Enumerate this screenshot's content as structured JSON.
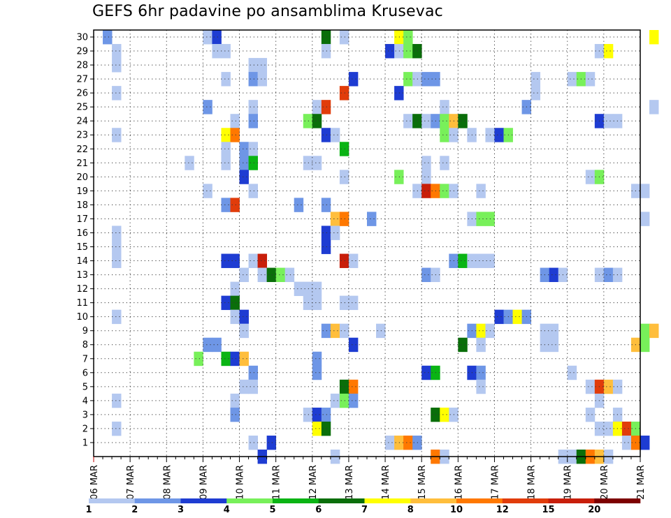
{
  "title": "GEFS 6hr padavine po ansamblima Krusevac",
  "chart_data": {
    "type": "heatmap",
    "title": "GEFS 6hr padavine po ansamblima Krusevac",
    "x_dates": [
      "06 MAR",
      "07 MAR",
      "08 MAR",
      "09 MAR",
      "10 MAR",
      "11 MAR",
      "12 MAR",
      "13 MAR",
      "14 MAR",
      "15 MAR",
      "16 MAR",
      "17 MAR",
      "18 MAR",
      "19 MAR",
      "20 MAR",
      "21 MAR"
    ],
    "x_step": "6h",
    "ylim": [
      0,
      30
    ],
    "y_ticks": [
      1,
      2,
      3,
      4,
      5,
      6,
      7,
      8,
      9,
      10,
      11,
      12,
      13,
      14,
      15,
      16,
      17,
      18,
      19,
      20,
      21,
      22,
      23,
      24,
      25,
      26,
      27,
      28,
      29,
      30
    ],
    "grid": true,
    "legend": {
      "placement": "bottom",
      "levels": [
        1,
        2,
        3,
        4,
        5,
        6,
        7,
        8,
        10,
        12,
        15,
        20
      ],
      "colors": [
        "#b4c8f0",
        "#6e96e6",
        "#1e3cd2",
        "#78f05a",
        "#0ab414",
        "#0a6e0a",
        "#ffff00",
        "#ffbe3c",
        "#ff7800",
        "#e13c0a",
        "#c81e0a",
        "#7d0000"
      ]
    },
    "cells": [
      [
        1,
        30,
        2
      ],
      [
        12,
        30,
        1
      ],
      [
        13,
        30,
        3
      ],
      [
        25,
        30,
        6
      ],
      [
        27,
        30,
        1
      ],
      [
        33,
        30,
        7
      ],
      [
        34,
        30,
        4
      ],
      [
        61,
        30,
        7
      ],
      [
        2,
        29,
        1
      ],
      [
        13,
        29,
        1
      ],
      [
        14,
        29,
        1
      ],
      [
        25,
        29,
        1
      ],
      [
        32,
        29,
        3
      ],
      [
        33,
        29,
        1
      ],
      [
        34,
        29,
        4
      ],
      [
        35,
        29,
        6
      ],
      [
        55,
        29,
        1
      ],
      [
        56,
        29,
        7
      ],
      [
        2,
        28,
        1
      ],
      [
        17,
        28,
        1
      ],
      [
        18,
        28,
        1
      ],
      [
        14,
        27,
        1
      ],
      [
        17,
        27,
        2
      ],
      [
        18,
        27,
        1
      ],
      [
        28,
        27,
        3
      ],
      [
        34,
        27,
        4
      ],
      [
        35,
        27,
        1
      ],
      [
        36,
        27,
        2
      ],
      [
        37,
        27,
        2
      ],
      [
        48,
        27,
        1
      ],
      [
        52,
        27,
        1
      ],
      [
        53,
        27,
        4
      ],
      [
        54,
        27,
        1
      ],
      [
        2,
        26,
        1
      ],
      [
        27,
        26,
        10
      ],
      [
        33,
        26,
        3
      ],
      [
        48,
        26,
        1
      ],
      [
        12,
        25,
        2
      ],
      [
        17,
        25,
        1
      ],
      [
        24,
        25,
        1
      ],
      [
        25,
        25,
        10
      ],
      [
        38,
        25,
        1
      ],
      [
        47,
        25,
        2
      ],
      [
        61,
        25,
        1
      ],
      [
        15,
        24,
        1
      ],
      [
        17,
        24,
        2
      ],
      [
        23,
        24,
        4
      ],
      [
        24,
        24,
        6
      ],
      [
        34,
        24,
        1
      ],
      [
        35,
        24,
        6
      ],
      [
        36,
        24,
        1
      ],
      [
        37,
        24,
        2
      ],
      [
        38,
        24,
        4
      ],
      [
        39,
        24,
        8
      ],
      [
        40,
        24,
        6
      ],
      [
        55,
        24,
        3
      ],
      [
        56,
        24,
        1
      ],
      [
        57,
        24,
        1
      ],
      [
        2,
        23,
        1
      ],
      [
        14,
        23,
        7
      ],
      [
        15,
        23,
        9
      ],
      [
        25,
        23,
        3
      ],
      [
        26,
        23,
        1
      ],
      [
        38,
        23,
        4
      ],
      [
        39,
        23,
        1
      ],
      [
        41,
        23,
        1
      ],
      [
        43,
        23,
        1
      ],
      [
        44,
        23,
        3
      ],
      [
        45,
        23,
        4
      ],
      [
        14,
        22,
        1
      ],
      [
        16,
        22,
        2
      ],
      [
        17,
        22,
        1
      ],
      [
        27,
        22,
        5
      ],
      [
        10,
        21,
        1
      ],
      [
        14,
        21,
        1
      ],
      [
        16,
        21,
        2
      ],
      [
        17,
        21,
        5
      ],
      [
        23,
        21,
        1
      ],
      [
        24,
        21,
        1
      ],
      [
        36,
        21,
        1
      ],
      [
        38,
        21,
        1
      ],
      [
        16,
        20,
        3
      ],
      [
        27,
        20,
        1
      ],
      [
        33,
        20,
        4
      ],
      [
        36,
        20,
        1
      ],
      [
        54,
        20,
        1
      ],
      [
        55,
        20,
        4
      ],
      [
        12,
        19,
        1
      ],
      [
        17,
        19,
        1
      ],
      [
        35,
        19,
        1
      ],
      [
        36,
        19,
        11
      ],
      [
        37,
        19,
        9
      ],
      [
        38,
        19,
        4
      ],
      [
        39,
        19,
        1
      ],
      [
        42,
        19,
        1
      ],
      [
        59,
        19,
        1
      ],
      [
        60,
        19,
        1
      ],
      [
        14,
        18,
        2
      ],
      [
        15,
        18,
        10
      ],
      [
        22,
        18,
        2
      ],
      [
        25,
        18,
        2
      ],
      [
        26,
        17,
        8
      ],
      [
        27,
        17,
        9
      ],
      [
        30,
        17,
        2
      ],
      [
        41,
        17,
        1
      ],
      [
        42,
        17,
        4
      ],
      [
        43,
        17,
        4
      ],
      [
        60,
        17,
        1
      ],
      [
        2,
        16,
        1
      ],
      [
        25,
        16,
        3
      ],
      [
        26,
        16,
        1
      ],
      [
        2,
        15,
        1
      ],
      [
        25,
        15,
        3
      ],
      [
        2,
        14,
        1
      ],
      [
        14,
        14,
        3
      ],
      [
        15,
        14,
        3
      ],
      [
        17,
        14,
        1
      ],
      [
        18,
        14,
        11
      ],
      [
        27,
        14,
        11
      ],
      [
        28,
        14,
        1
      ],
      [
        39,
        14,
        2
      ],
      [
        40,
        14,
        5
      ],
      [
        41,
        14,
        1
      ],
      [
        42,
        14,
        1
      ],
      [
        43,
        14,
        1
      ],
      [
        16,
        13,
        1
      ],
      [
        18,
        13,
        1
      ],
      [
        19,
        13,
        6
      ],
      [
        20,
        13,
        4
      ],
      [
        21,
        13,
        1
      ],
      [
        36,
        13,
        2
      ],
      [
        37,
        13,
        1
      ],
      [
        49,
        13,
        2
      ],
      [
        50,
        13,
        3
      ],
      [
        51,
        13,
        1
      ],
      [
        55,
        13,
        1
      ],
      [
        56,
        13,
        2
      ],
      [
        57,
        13,
        1
      ],
      [
        15,
        12,
        1
      ],
      [
        22,
        12,
        1
      ],
      [
        23,
        12,
        1
      ],
      [
        24,
        12,
        1
      ],
      [
        14,
        11,
        3
      ],
      [
        15,
        11,
        6
      ],
      [
        23,
        11,
        1
      ],
      [
        24,
        11,
        1
      ],
      [
        27,
        11,
        1
      ],
      [
        28,
        11,
        1
      ],
      [
        2,
        10,
        1
      ],
      [
        15,
        10,
        1
      ],
      [
        16,
        10,
        3
      ],
      [
        44,
        10,
        3
      ],
      [
        45,
        10,
        2
      ],
      [
        46,
        10,
        7
      ],
      [
        47,
        10,
        2
      ],
      [
        16,
        9,
        1
      ],
      [
        25,
        9,
        2
      ],
      [
        26,
        9,
        8
      ],
      [
        27,
        9,
        1
      ],
      [
        31,
        9,
        1
      ],
      [
        41,
        9,
        2
      ],
      [
        42,
        9,
        7
      ],
      [
        43,
        9,
        1
      ],
      [
        49,
        9,
        1
      ],
      [
        50,
        9,
        1
      ],
      [
        60,
        9,
        4
      ],
      [
        61,
        9,
        8
      ],
      [
        12,
        8,
        2
      ],
      [
        13,
        8,
        2
      ],
      [
        28,
        8,
        3
      ],
      [
        40,
        8,
        6
      ],
      [
        42,
        8,
        1
      ],
      [
        49,
        8,
        1
      ],
      [
        50,
        8,
        1
      ],
      [
        59,
        8,
        8
      ],
      [
        60,
        8,
        4
      ],
      [
        11,
        7,
        4
      ],
      [
        14,
        7,
        5
      ],
      [
        15,
        7,
        3
      ],
      [
        16,
        7,
        8
      ],
      [
        24,
        7,
        2
      ],
      [
        17,
        6,
        2
      ],
      [
        24,
        6,
        2
      ],
      [
        36,
        6,
        3
      ],
      [
        37,
        6,
        5
      ],
      [
        41,
        6,
        3
      ],
      [
        42,
        6,
        2
      ],
      [
        52,
        6,
        1
      ],
      [
        16,
        5,
        1
      ],
      [
        17,
        5,
        1
      ],
      [
        27,
        5,
        6
      ],
      [
        28,
        5,
        9
      ],
      [
        42,
        5,
        1
      ],
      [
        54,
        5,
        1
      ],
      [
        55,
        5,
        10
      ],
      [
        56,
        5,
        8
      ],
      [
        57,
        5,
        1
      ],
      [
        2,
        4,
        1
      ],
      [
        15,
        4,
        1
      ],
      [
        26,
        4,
        1
      ],
      [
        27,
        4,
        4
      ],
      [
        28,
        4,
        2
      ],
      [
        55,
        4,
        1
      ],
      [
        15,
        3,
        2
      ],
      [
        23,
        3,
        1
      ],
      [
        24,
        3,
        3
      ],
      [
        25,
        3,
        2
      ],
      [
        37,
        3,
        6
      ],
      [
        38,
        3,
        7
      ],
      [
        39,
        3,
        1
      ],
      [
        54,
        3,
        1
      ],
      [
        57,
        3,
        1
      ],
      [
        2,
        2,
        1
      ],
      [
        24,
        2,
        7
      ],
      [
        25,
        2,
        6
      ],
      [
        55,
        2,
        1
      ],
      [
        56,
        2,
        1
      ],
      [
        57,
        2,
        7
      ],
      [
        58,
        2,
        10
      ],
      [
        59,
        2,
        4
      ],
      [
        17,
        1,
        1
      ],
      [
        19,
        1,
        3
      ],
      [
        32,
        1,
        1
      ],
      [
        33,
        1,
        8
      ],
      [
        34,
        1,
        9
      ],
      [
        35,
        1,
        2
      ],
      [
        58,
        1,
        1
      ],
      [
        59,
        1,
        9
      ],
      [
        60,
        1,
        3
      ],
      [
        18,
        0,
        3
      ],
      [
        26,
        0,
        1
      ],
      [
        37,
        0,
        9
      ],
      [
        38,
        0,
        1
      ],
      [
        51,
        0,
        1
      ],
      [
        52,
        0,
        1
      ],
      [
        53,
        0,
        6
      ],
      [
        54,
        0,
        9
      ],
      [
        55,
        0,
        8
      ],
      [
        56,
        0,
        1
      ]
    ]
  }
}
